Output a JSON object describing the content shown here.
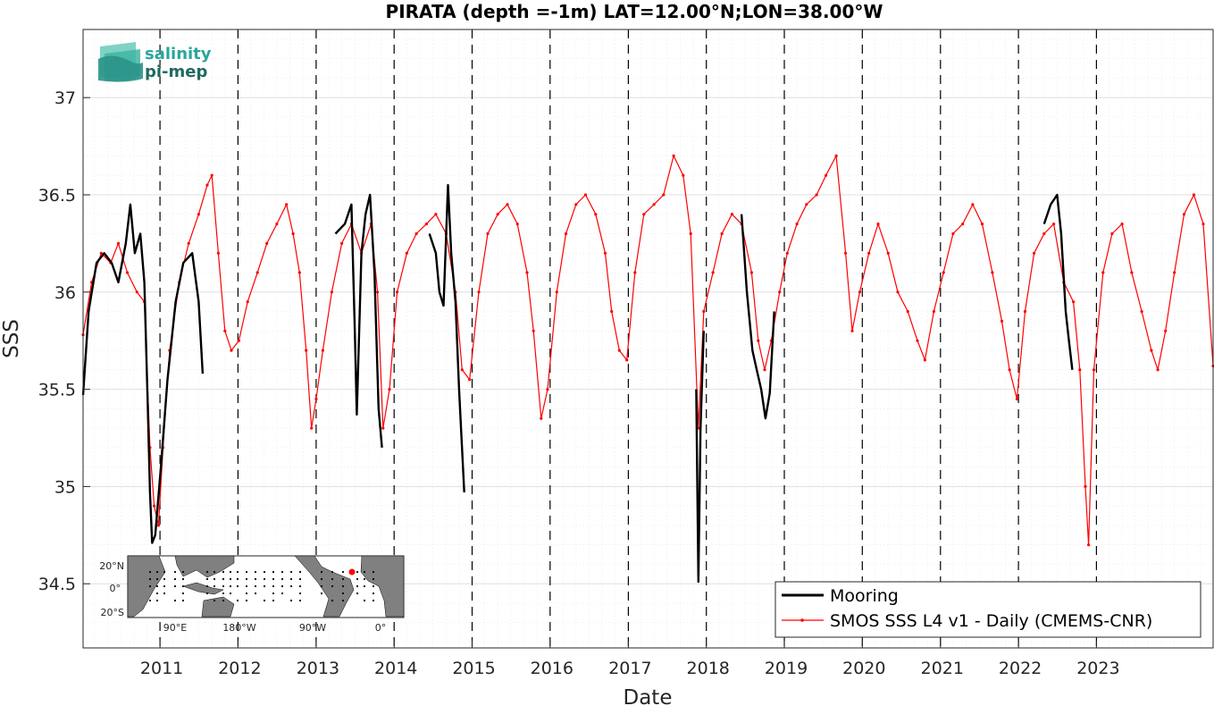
{
  "chart_data": {
    "type": "line",
    "title": "PIRATA (depth =-1m) LAT=12.00°N;LON=38.00°W",
    "xlabel": "Date",
    "ylabel": "SSS",
    "x_axis": {
      "type": "date",
      "range": [
        "2010-01-06",
        "2024-06-30"
      ],
      "tick_labels": [
        "2011",
        "2012",
        "2013",
        "2014",
        "2015",
        "2016",
        "2017",
        "2018",
        "2019",
        "2020",
        "2021",
        "2022",
        "2023"
      ]
    },
    "ylim": [
      34.17,
      37.35
    ],
    "y_tick_labels": [
      "34.5",
      "35",
      "35.5",
      "36",
      "36.5",
      "37"
    ],
    "grid": true,
    "year_boundaries_dashed": true,
    "legend": {
      "placement": "bottom-right",
      "entries": [
        "Mooring",
        "SMOS SSS L4 v1 - Daily (CMEMS-CNR)"
      ]
    },
    "series": [
      {
        "name": "Mooring",
        "color": "#000000",
        "points": [
          [
            "2010-01-06",
            35.47
          ],
          [
            "2010-02-01",
            35.9
          ],
          [
            "2010-03-10",
            36.15
          ],
          [
            "2010-04-15",
            36.2
          ],
          [
            "2010-05-20",
            36.15
          ],
          [
            "2010-06-20",
            36.05
          ],
          [
            "2010-07-25",
            36.25
          ],
          [
            "2010-08-15",
            36.45
          ],
          [
            "2010-09-05",
            36.2
          ],
          [
            "2010-10-01",
            36.3
          ],
          [
            "2010-10-20",
            36.05
          ],
          [
            "2010-11-05",
            35.4
          ],
          [
            "2010-11-15",
            34.97
          ],
          [
            "2010-11-25",
            34.71
          ],
          [
            "2010-12-10",
            34.75
          ],
          [
            "2011-01-05",
            35.1
          ],
          [
            "2011-02-05",
            35.55
          ],
          [
            "2011-03-15",
            35.95
          ],
          [
            "2011-04-20",
            36.15
          ],
          [
            "2011-06-01",
            36.2
          ],
          [
            "2011-07-01",
            35.95
          ],
          [
            "2011-07-20",
            35.58
          ],
          [
            null,
            null
          ],
          [
            "2013-04-01",
            36.3
          ],
          [
            "2013-05-15",
            36.35
          ],
          [
            "2013-06-15",
            36.45
          ],
          [
            "2013-07-01",
            35.8
          ],
          [
            "2013-07-10",
            35.37
          ],
          [
            "2013-08-01",
            36.2
          ],
          [
            "2013-08-20",
            36.4
          ],
          [
            "2013-09-10",
            36.5
          ],
          [
            "2013-10-01",
            36.1
          ],
          [
            "2013-10-20",
            35.4
          ],
          [
            "2013-11-05",
            35.2
          ],
          [
            null,
            null
          ],
          [
            "2014-06-15",
            36.3
          ],
          [
            "2014-07-15",
            36.2
          ],
          [
            "2014-08-01",
            36.0
          ],
          [
            "2014-08-20",
            35.93
          ],
          [
            "2014-09-10",
            36.55
          ],
          [
            "2014-09-25",
            36.2
          ],
          [
            "2014-10-15",
            35.95
          ],
          [
            "2014-11-01",
            35.5
          ],
          [
            "2014-11-25",
            34.97
          ],
          [
            null,
            null
          ],
          [
            "2017-11-15",
            35.5
          ],
          [
            "2017-11-25",
            34.51
          ],
          [
            "2017-12-05",
            35.3
          ],
          [
            "2017-12-20",
            35.8
          ],
          [
            null,
            null
          ],
          [
            "2018-06-15",
            36.4
          ],
          [
            "2018-07-10",
            36.0
          ],
          [
            "2018-08-05",
            35.7
          ],
          [
            "2018-08-25",
            35.6
          ],
          [
            "2018-09-15",
            35.5
          ],
          [
            "2018-10-05",
            35.35
          ],
          [
            "2018-10-25",
            35.48
          ],
          [
            "2018-11-15",
            35.9
          ],
          [
            null,
            null
          ],
          [
            "2022-05-01",
            36.35
          ],
          [
            "2022-06-01",
            36.45
          ],
          [
            "2022-07-01",
            36.5
          ],
          [
            "2022-07-20",
            36.3
          ],
          [
            "2022-08-10",
            35.9
          ],
          [
            "2022-08-25",
            35.75
          ],
          [
            "2022-09-10",
            35.6
          ]
        ]
      },
      {
        "name": "SMOS SSS L4 v1 - Daily (CMEMS-CNR)",
        "color": "#ff0000",
        "points": [
          [
            "2010-01-06",
            35.78
          ],
          [
            "2010-02-15",
            36.05
          ],
          [
            "2010-04-01",
            36.2
          ],
          [
            "2010-05-15",
            36.15
          ],
          [
            "2010-06-20",
            36.25
          ],
          [
            "2010-08-01",
            36.1
          ],
          [
            "2010-09-15",
            36.0
          ],
          [
            "2010-10-20",
            35.95
          ],
          [
            "2010-11-15",
            35.2
          ],
          [
            "2010-12-05",
            34.9
          ],
          [
            "2010-12-25",
            34.8
          ],
          [
            "2011-01-15",
            35.2
          ],
          [
            "2011-02-15",
            35.7
          ],
          [
            "2011-04-01",
            36.05
          ],
          [
            "2011-05-15",
            36.25
          ],
          [
            "2011-07-01",
            36.4
          ],
          [
            "2011-08-10",
            36.55
          ],
          [
            "2011-09-01",
            36.6
          ],
          [
            "2011-10-01",
            36.2
          ],
          [
            "2011-11-01",
            35.8
          ],
          [
            "2011-12-01",
            35.7
          ],
          [
            "2012-01-05",
            35.75
          ],
          [
            "2012-02-15",
            35.95
          ],
          [
            "2012-04-01",
            36.1
          ],
          [
            "2012-05-15",
            36.25
          ],
          [
            "2012-07-01",
            36.35
          ],
          [
            "2012-08-15",
            36.45
          ],
          [
            "2012-09-15",
            36.3
          ],
          [
            "2012-10-15",
            36.1
          ],
          [
            "2012-11-15",
            35.7
          ],
          [
            "2012-12-10",
            35.3
          ],
          [
            "2013-01-01",
            35.45
          ],
          [
            "2013-02-01",
            35.7
          ],
          [
            "2013-03-15",
            36.0
          ],
          [
            "2013-05-01",
            36.25
          ],
          [
            "2013-06-15",
            36.35
          ],
          [
            "2013-08-01",
            36.2
          ],
          [
            "2013-09-15",
            36.35
          ],
          [
            "2013-10-15",
            36.0
          ],
          [
            "2013-11-10",
            35.3
          ],
          [
            "2013-12-10",
            35.5
          ],
          [
            "2014-01-15",
            36.0
          ],
          [
            "2014-03-01",
            36.2
          ],
          [
            "2014-04-15",
            36.3
          ],
          [
            "2014-06-01",
            36.35
          ],
          [
            "2014-07-15",
            36.4
          ],
          [
            "2014-09-01",
            36.3
          ],
          [
            "2014-10-15",
            36.0
          ],
          [
            "2014-11-15",
            35.6
          ],
          [
            "2014-12-20",
            35.55
          ],
          [
            "2015-02-01",
            36.0
          ],
          [
            "2015-03-15",
            36.3
          ],
          [
            "2015-05-01",
            36.4
          ],
          [
            "2015-06-15",
            36.45
          ],
          [
            "2015-08-01",
            36.35
          ],
          [
            "2015-09-15",
            36.1
          ],
          [
            "2015-10-15",
            35.8
          ],
          [
            "2015-11-20",
            35.35
          ],
          [
            "2015-12-20",
            35.5
          ],
          [
            "2016-02-01",
            36.0
          ],
          [
            "2016-03-15",
            36.3
          ],
          [
            "2016-05-01",
            36.45
          ],
          [
            "2016-06-15",
            36.5
          ],
          [
            "2016-08-01",
            36.4
          ],
          [
            "2016-09-15",
            36.2
          ],
          [
            "2016-10-15",
            35.9
          ],
          [
            "2016-11-20",
            35.7
          ],
          [
            "2016-12-25",
            35.65
          ],
          [
            "2017-02-01",
            36.1
          ],
          [
            "2017-03-15",
            36.4
          ],
          [
            "2017-05-01",
            36.45
          ],
          [
            "2017-06-15",
            36.5
          ],
          [
            "2017-08-01",
            36.7
          ],
          [
            "2017-09-15",
            36.6
          ],
          [
            "2017-10-20",
            36.3
          ],
          [
            "2017-11-25",
            35.3
          ],
          [
            "2017-12-20",
            35.9
          ],
          [
            "2018-02-01",
            36.1
          ],
          [
            "2018-03-15",
            36.3
          ],
          [
            "2018-05-01",
            36.4
          ],
          [
            "2018-06-15",
            36.35
          ],
          [
            "2018-08-01",
            36.1
          ],
          [
            "2018-09-01",
            35.75
          ],
          [
            "2018-10-01",
            35.6
          ],
          [
            "2018-11-01",
            35.75
          ],
          [
            "2018-12-10",
            36.0
          ],
          [
            "2019-01-15",
            36.2
          ],
          [
            "2019-03-01",
            36.35
          ],
          [
            "2019-04-15",
            36.45
          ],
          [
            "2019-06-01",
            36.5
          ],
          [
            "2019-07-15",
            36.6
          ],
          [
            "2019-09-01",
            36.7
          ],
          [
            "2019-10-15",
            36.2
          ],
          [
            "2019-11-15",
            35.8
          ],
          [
            "2019-12-20",
            36.0
          ],
          [
            "2020-02-01",
            36.2
          ],
          [
            "2020-03-15",
            36.35
          ],
          [
            "2020-05-01",
            36.2
          ],
          [
            "2020-06-15",
            36.0
          ],
          [
            "2020-08-01",
            35.9
          ],
          [
            "2020-09-15",
            35.75
          ],
          [
            "2020-10-20",
            35.65
          ],
          [
            "2020-12-01",
            35.9
          ],
          [
            "2021-01-15",
            36.1
          ],
          [
            "2021-03-01",
            36.3
          ],
          [
            "2021-04-15",
            36.35
          ],
          [
            "2021-06-01",
            36.45
          ],
          [
            "2021-07-15",
            36.35
          ],
          [
            "2021-09-01",
            36.1
          ],
          [
            "2021-10-15",
            35.85
          ],
          [
            "2021-11-20",
            35.6
          ],
          [
            "2021-12-25",
            35.45
          ],
          [
            "2022-02-01",
            35.9
          ],
          [
            "2022-03-15",
            36.2
          ],
          [
            "2022-05-01",
            36.3
          ],
          [
            "2022-06-15",
            36.35
          ],
          [
            "2022-08-01",
            36.05
          ],
          [
            "2022-09-15",
            35.95
          ],
          [
            "2022-10-15",
            35.6
          ],
          [
            "2022-11-10",
            35.0
          ],
          [
            "2022-11-25",
            34.7
          ],
          [
            "2022-12-20",
            35.6
          ],
          [
            "2023-02-01",
            36.1
          ],
          [
            "2023-03-15",
            36.3
          ],
          [
            "2023-05-01",
            36.35
          ],
          [
            "2023-06-15",
            36.1
          ],
          [
            "2023-08-01",
            35.9
          ],
          [
            "2023-09-15",
            35.7
          ],
          [
            "2023-10-15",
            35.6
          ],
          [
            "2023-11-20",
            35.8
          ],
          [
            "2024-01-01",
            36.1
          ],
          [
            "2024-02-15",
            36.4
          ],
          [
            "2024-04-01",
            36.5
          ],
          [
            "2024-05-15",
            36.35
          ],
          [
            "2024-06-30",
            35.62
          ]
        ]
      }
    ],
    "logo": {
      "line1": "salinity",
      "line2": "pi-mep"
    },
    "inset_map": {
      "lat_labels": [
        "20°N",
        "0°",
        "20°S"
      ],
      "lon_labels": [
        "90°E",
        "180°W",
        "90°W",
        "0°"
      ]
    }
  },
  "colors": {
    "mooring": "#000000",
    "smos": "#ff0000",
    "grid": "#dcdcdc",
    "ocean": "#ffffff",
    "land": "#808080",
    "logo_teal": "#2aa79b",
    "logo_dark": "#1e6a5e"
  }
}
